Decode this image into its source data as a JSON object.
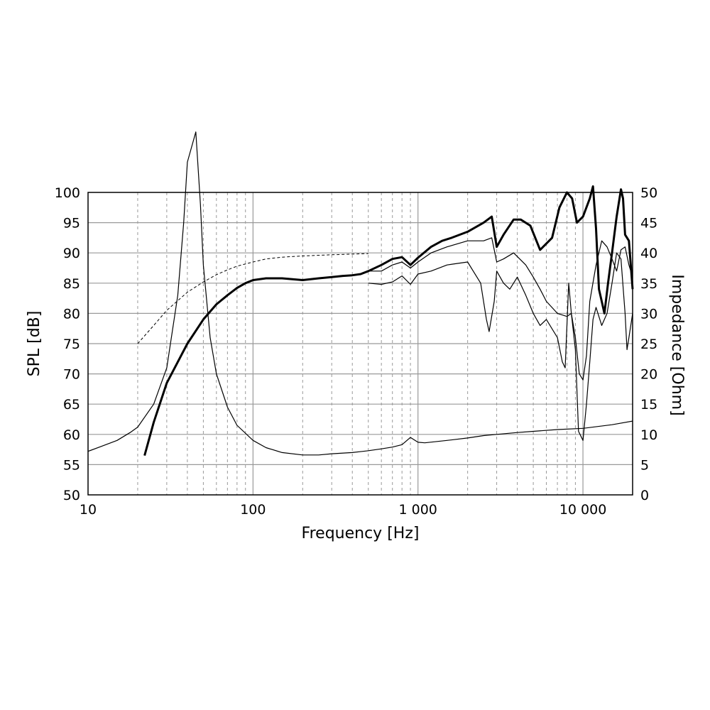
{
  "chart_data": {
    "type": "line",
    "title": "",
    "xlabel": "Frequency [Hz]",
    "ylabel": "SPL [dB]",
    "y2label": "Impedance [Ohm]",
    "x_scale": "log",
    "xlim": [
      10,
      20000
    ],
    "ylim": [
      50,
      100
    ],
    "y2lim": [
      0,
      50
    ],
    "grid": true,
    "legend": "none",
    "x_ticks": [
      {
        "value": 10,
        "label": "10"
      },
      {
        "value": 100,
        "label": "100"
      },
      {
        "value": 1000,
        "label": "1 000"
      },
      {
        "value": 10000,
        "label": "10 000"
      }
    ],
    "y_ticks": [
      "50",
      "55",
      "60",
      "65",
      "70",
      "75",
      "80",
      "85",
      "90",
      "95",
      "100"
    ],
    "y2_ticks": [
      "0",
      "5",
      "10",
      "15",
      "20",
      "25",
      "30",
      "35",
      "40",
      "45",
      "50"
    ],
    "series": [
      {
        "axis": "spl",
        "style": "thick",
        "points": [
          [
            22,
            56.5
          ],
          [
            25,
            62
          ],
          [
            30,
            68.5
          ],
          [
            40,
            75
          ],
          [
            50,
            79
          ],
          [
            60,
            81.5
          ],
          [
            70,
            83
          ],
          [
            80,
            84.2
          ],
          [
            90,
            85
          ],
          [
            100,
            85.5
          ],
          [
            120,
            85.8
          ],
          [
            150,
            85.8
          ],
          [
            200,
            85.5
          ],
          [
            250,
            85.8
          ],
          [
            300,
            86
          ],
          [
            350,
            86.2
          ],
          [
            400,
            86.3
          ],
          [
            450,
            86.5
          ],
          [
            500,
            87
          ],
          [
            600,
            88
          ],
          [
            700,
            89
          ],
          [
            800,
            89.3
          ],
          [
            900,
            88
          ],
          [
            1000,
            89.2
          ],
          [
            1200,
            91
          ],
          [
            1400,
            92
          ],
          [
            1600,
            92.5
          ],
          [
            2000,
            93.5
          ],
          [
            2500,
            95
          ],
          [
            2800,
            96
          ],
          [
            3000,
            91
          ],
          [
            3300,
            93
          ],
          [
            3800,
            95.5
          ],
          [
            4200,
            95.5
          ],
          [
            4800,
            94.5
          ],
          [
            5500,
            90.5
          ],
          [
            6500,
            92.5
          ],
          [
            7200,
            97.5
          ],
          [
            8000,
            100
          ],
          [
            8600,
            99
          ],
          [
            9200,
            95
          ],
          [
            10000,
            96
          ],
          [
            11000,
            99
          ],
          [
            11500,
            101
          ],
          [
            12000,
            94
          ],
          [
            12500,
            84
          ],
          [
            13000,
            82
          ],
          [
            13500,
            80
          ],
          [
            14200,
            85
          ],
          [
            15000,
            90
          ],
          [
            16000,
            96
          ],
          [
            17000,
            100.5
          ],
          [
            17500,
            99
          ],
          [
            18000,
            93
          ],
          [
            19000,
            92
          ],
          [
            20000,
            84
          ]
        ]
      },
      {
        "axis": "spl",
        "style": "thin",
        "points": [
          [
            500,
            87
          ],
          [
            600,
            87
          ],
          [
            700,
            88
          ],
          [
            800,
            88.5
          ],
          [
            900,
            87.5
          ],
          [
            1000,
            88.5
          ],
          [
            1200,
            90
          ],
          [
            1500,
            91
          ],
          [
            2000,
            92
          ],
          [
            2500,
            92
          ],
          [
            2800,
            92.5
          ],
          [
            3000,
            88.5
          ],
          [
            3300,
            89
          ],
          [
            3800,
            90
          ],
          [
            4500,
            88
          ],
          [
            5000,
            86
          ],
          [
            5500,
            84
          ],
          [
            6000,
            82
          ],
          [
            7000,
            80
          ],
          [
            8000,
            79.5
          ],
          [
            8500,
            80
          ],
          [
            9000,
            76
          ],
          [
            9500,
            70
          ],
          [
            10000,
            69
          ],
          [
            10500,
            73
          ],
          [
            11000,
            82
          ],
          [
            12000,
            88
          ],
          [
            13000,
            92
          ],
          [
            14000,
            91
          ],
          [
            15000,
            89
          ],
          [
            16000,
            87
          ],
          [
            17000,
            90.5
          ],
          [
            18000,
            91
          ],
          [
            19000,
            88
          ],
          [
            20000,
            86
          ]
        ]
      },
      {
        "axis": "spl",
        "style": "thin",
        "points": [
          [
            500,
            85
          ],
          [
            600,
            84.8
          ],
          [
            700,
            85.2
          ],
          [
            800,
            86.2
          ],
          [
            900,
            84.8
          ],
          [
            1000,
            86.5
          ],
          [
            1200,
            87
          ],
          [
            1500,
            88
          ],
          [
            2000,
            88.5
          ],
          [
            2400,
            85
          ],
          [
            2600,
            79
          ],
          [
            2700,
            77
          ],
          [
            2900,
            82
          ],
          [
            3000,
            87
          ],
          [
            3300,
            85
          ],
          [
            3600,
            84
          ],
          [
            4000,
            86
          ],
          [
            4500,
            83
          ],
          [
            5000,
            80
          ],
          [
            5500,
            78
          ],
          [
            6000,
            79
          ],
          [
            7000,
            76
          ],
          [
            7500,
            72
          ],
          [
            7800,
            71
          ],
          [
            8200,
            85
          ],
          [
            8500,
            80
          ],
          [
            9000,
            74
          ],
          [
            9400,
            60.5
          ],
          [
            10000,
            59
          ],
          [
            10500,
            65
          ],
          [
            11000,
            72
          ],
          [
            11500,
            79
          ],
          [
            12000,
            81
          ],
          [
            13000,
            78
          ],
          [
            14000,
            80
          ],
          [
            15000,
            85
          ],
          [
            16000,
            90
          ],
          [
            17000,
            89
          ],
          [
            18000,
            80
          ],
          [
            18500,
            74
          ],
          [
            19000,
            76
          ],
          [
            20000,
            80
          ]
        ]
      },
      {
        "axis": "spl",
        "style": "dashed",
        "points": [
          [
            20,
            75
          ],
          [
            25,
            78
          ],
          [
            30,
            80.5
          ],
          [
            40,
            83.5
          ],
          [
            50,
            85.2
          ],
          [
            60,
            86.4
          ],
          [
            70,
            87.2
          ],
          [
            80,
            87.8
          ],
          [
            100,
            88.5
          ],
          [
            120,
            89
          ],
          [
            150,
            89.3
          ],
          [
            200,
            89.5
          ],
          [
            300,
            89.7
          ],
          [
            400,
            89.8
          ],
          [
            500,
            89.9
          ]
        ]
      },
      {
        "axis": "impedance",
        "style": "thin",
        "points": [
          [
            10,
            7.2
          ],
          [
            12,
            8
          ],
          [
            15,
            9
          ],
          [
            18,
            10.3
          ],
          [
            20,
            11.2
          ],
          [
            25,
            15
          ],
          [
            30,
            21
          ],
          [
            35,
            33
          ],
          [
            38,
            45
          ],
          [
            40,
            55
          ],
          [
            45,
            60
          ],
          [
            48,
            48
          ],
          [
            50,
            38
          ],
          [
            55,
            26
          ],
          [
            60,
            20
          ],
          [
            70,
            14.5
          ],
          [
            80,
            11.5
          ],
          [
            100,
            9
          ],
          [
            120,
            7.8
          ],
          [
            150,
            7
          ],
          [
            200,
            6.6
          ],
          [
            250,
            6.6
          ],
          [
            300,
            6.8
          ],
          [
            400,
            7
          ],
          [
            500,
            7.3
          ],
          [
            600,
            7.6
          ],
          [
            700,
            7.9
          ],
          [
            800,
            8.3
          ],
          [
            900,
            9.5
          ],
          [
            1000,
            8.7
          ],
          [
            1100,
            8.6
          ],
          [
            1500,
            9
          ],
          [
            2000,
            9.4
          ],
          [
            2500,
            9.8
          ],
          [
            3000,
            10
          ],
          [
            4000,
            10.3
          ],
          [
            5000,
            10.5
          ],
          [
            7000,
            10.8
          ],
          [
            10000,
            11
          ],
          [
            15000,
            11.6
          ],
          [
            20000,
            12.2
          ]
        ]
      }
    ]
  }
}
